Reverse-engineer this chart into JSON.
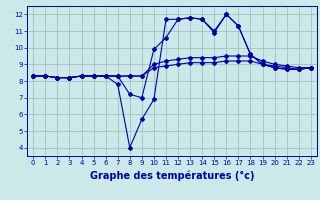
{
  "bg_color": "#cce8e8",
  "line_color": "#0000aa",
  "grid_color": "#99bbbb",
  "xlabel": "Graphe des températures (°c)",
  "xlim": [
    -0.5,
    23.5
  ],
  "ylim": [
    3.5,
    12.5
  ],
  "xticks": [
    0,
    1,
    2,
    3,
    4,
    5,
    6,
    7,
    8,
    9,
    10,
    11,
    12,
    13,
    14,
    15,
    16,
    17,
    18,
    19,
    20,
    21,
    22,
    23
  ],
  "yticks": [
    4,
    5,
    6,
    7,
    8,
    9,
    10,
    11,
    12
  ],
  "lines": [
    {
      "x": [
        0,
        1,
        2,
        3,
        4,
        5,
        6,
        7,
        8,
        9,
        10,
        11,
        12,
        13,
        14,
        15,
        16,
        17,
        18,
        19,
        20,
        21,
        22,
        23
      ],
      "y": [
        8.3,
        8.3,
        8.2,
        8.2,
        8.3,
        8.3,
        8.3,
        7.8,
        4.0,
        5.7,
        6.9,
        11.7,
        11.7,
        11.8,
        11.7,
        10.9,
        12.0,
        11.3,
        9.6,
        9.0,
        8.8,
        8.7,
        8.7,
        8.8
      ]
    },
    {
      "x": [
        0,
        1,
        2,
        3,
        4,
        5,
        6,
        7,
        8,
        9,
        10,
        11,
        12,
        13,
        14,
        15,
        16,
        17,
        18,
        19,
        20,
        21,
        22,
        23
      ],
      "y": [
        8.3,
        8.3,
        8.2,
        8.2,
        8.3,
        8.3,
        8.3,
        8.3,
        8.3,
        8.3,
        8.8,
        8.9,
        9.0,
        9.1,
        9.1,
        9.1,
        9.2,
        9.2,
        9.2,
        9.0,
        8.9,
        8.8,
        8.7,
        8.8
      ]
    },
    {
      "x": [
        0,
        1,
        2,
        3,
        4,
        5,
        6,
        7,
        8,
        9,
        10,
        11,
        12,
        13,
        14,
        15,
        16,
        17,
        18,
        19,
        20,
        21,
        22,
        23
      ],
      "y": [
        8.3,
        8.3,
        8.2,
        8.2,
        8.3,
        8.3,
        8.3,
        8.3,
        8.3,
        8.3,
        9.0,
        9.2,
        9.3,
        9.4,
        9.4,
        9.4,
        9.5,
        9.5,
        9.5,
        9.2,
        9.0,
        8.9,
        8.8,
        8.8
      ]
    },
    {
      "x": [
        0,
        1,
        2,
        3,
        4,
        5,
        6,
        7,
        8,
        9,
        10,
        11,
        12,
        13,
        14,
        15,
        16,
        17,
        18,
        19,
        20,
        21,
        22,
        23
      ],
      "y": [
        8.3,
        8.3,
        8.2,
        8.2,
        8.3,
        8.3,
        8.3,
        8.3,
        7.2,
        7.0,
        9.9,
        10.6,
        11.7,
        11.8,
        11.7,
        11.0,
        12.0,
        11.3,
        9.6,
        9.0,
        8.8,
        8.7,
        8.7,
        8.8
      ]
    }
  ]
}
